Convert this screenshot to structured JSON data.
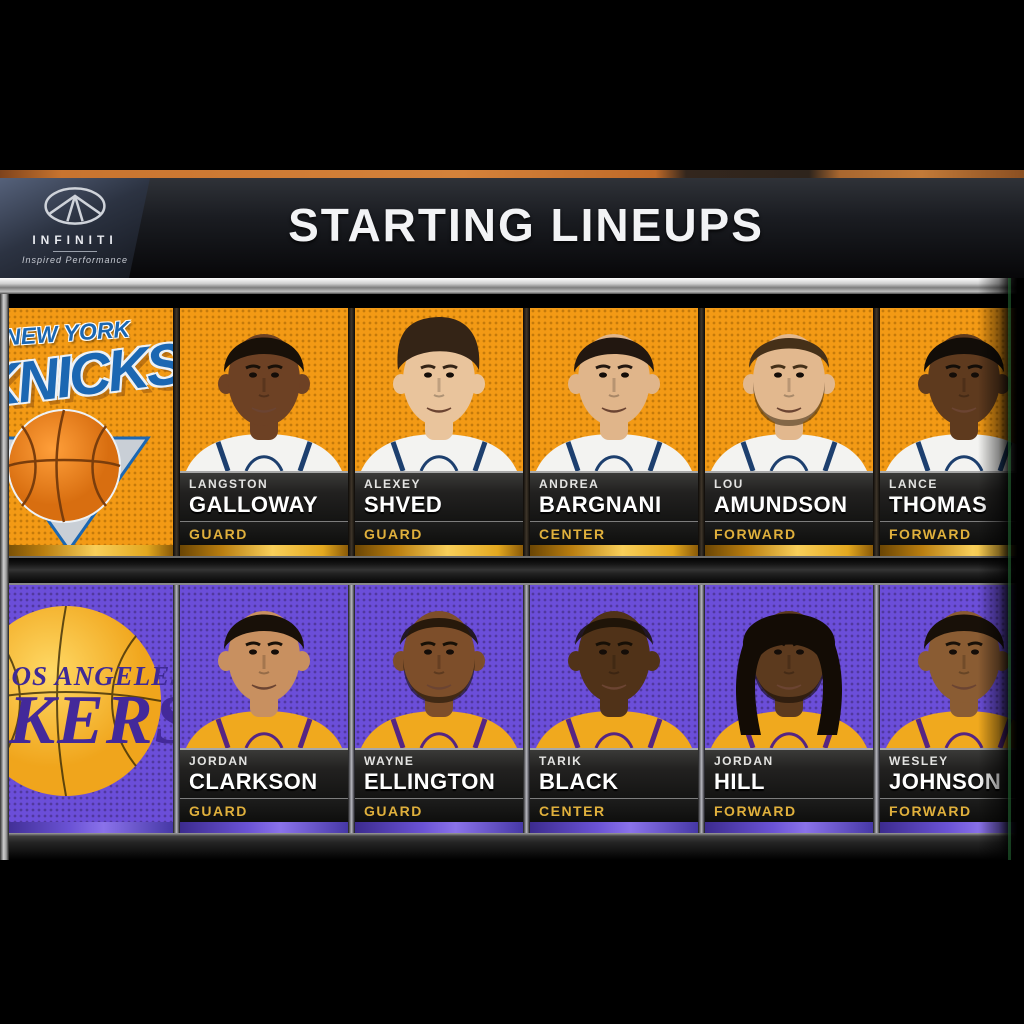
{
  "header": {
    "title": "STARTING LINEUPS",
    "sponsor": {
      "name": "INFINITI",
      "tagline": "Inspired Performance"
    }
  },
  "teams": [
    {
      "id": "knicks",
      "logo_text_top": "NEW YORK",
      "logo_text_main": "KNICKS",
      "colors": {
        "bg": "#F39A15",
        "dot": "#C47A0B",
        "accent": "#1B67B2",
        "strip": "linear-gradient(90deg,#6a4504 0%,#b97e10 25%,#f8cf5a 55%,#e3a81f 85%,#8a5a08 100%)"
      },
      "jersey": {
        "main": "#f3f3f1",
        "trim": "#1d3f6e"
      },
      "players": [
        {
          "first": "LANGSTON",
          "last": "GALLOWAY",
          "position": "GUARD",
          "skin": "#6d4124",
          "hair": "#181008",
          "style": "short",
          "beard": false
        },
        {
          "first": "ALEXEY",
          "last": "SHVED",
          "position": "GUARD",
          "skin": "#e9c49c",
          "hair": "#342416",
          "style": "quiff",
          "beard": false
        },
        {
          "first": "ANDREA",
          "last": "BARGNANI",
          "position": "CENTER",
          "skin": "#e0b58a",
          "hair": "#221710",
          "style": "short",
          "beard": false
        },
        {
          "first": "LOU",
          "last": "AMUNDSON",
          "position": "FORWARD",
          "skin": "#e2b88e",
          "hair": "#453018",
          "style": "slick",
          "beard": true
        },
        {
          "first": "LANCE",
          "last": "THOMAS",
          "position": "FORWARD",
          "skin": "#5e3a1e",
          "hair": "#120d08",
          "style": "short",
          "beard": false
        }
      ]
    },
    {
      "id": "lakers",
      "logo_text_top": "LOS ANGELES",
      "logo_text_main": "LAKERS",
      "colors": {
        "bg": "#6B4ED9",
        "dot": "#50389E",
        "accent": "#43299A",
        "strip": "linear-gradient(90deg,#3c2b8e 0%,#6a52d4 40%,#8a72ea 60%,#4638a6 100%)"
      },
      "jersey": {
        "main": "#f0a91e",
        "trim": "#552583"
      },
      "players": [
        {
          "first": "JORDAN",
          "last": "CLARKSON",
          "position": "GUARD",
          "skin": "#c89060",
          "hair": "#181008",
          "style": "short",
          "beard": false
        },
        {
          "first": "WAYNE",
          "last": "ELLINGTON",
          "position": "GUARD",
          "skin": "#7d4e2a",
          "hair": "#171006",
          "style": "buzz",
          "beard": true
        },
        {
          "first": "TARIK",
          "last": "BLACK",
          "position": "CENTER",
          "skin": "#503218",
          "hair": "#160f06",
          "style": "buzz",
          "beard": false
        },
        {
          "first": "JORDAN",
          "last": "HILL",
          "position": "FORWARD",
          "skin": "#5c3a1e",
          "hair": "#130c05",
          "style": "dreads",
          "beard": true
        },
        {
          "first": "WESLEY",
          "last": "JOHNSON",
          "position": "FORWARD",
          "skin": "#8a5c33",
          "hair": "#181008",
          "style": "short",
          "beard": false
        }
      ]
    }
  ]
}
